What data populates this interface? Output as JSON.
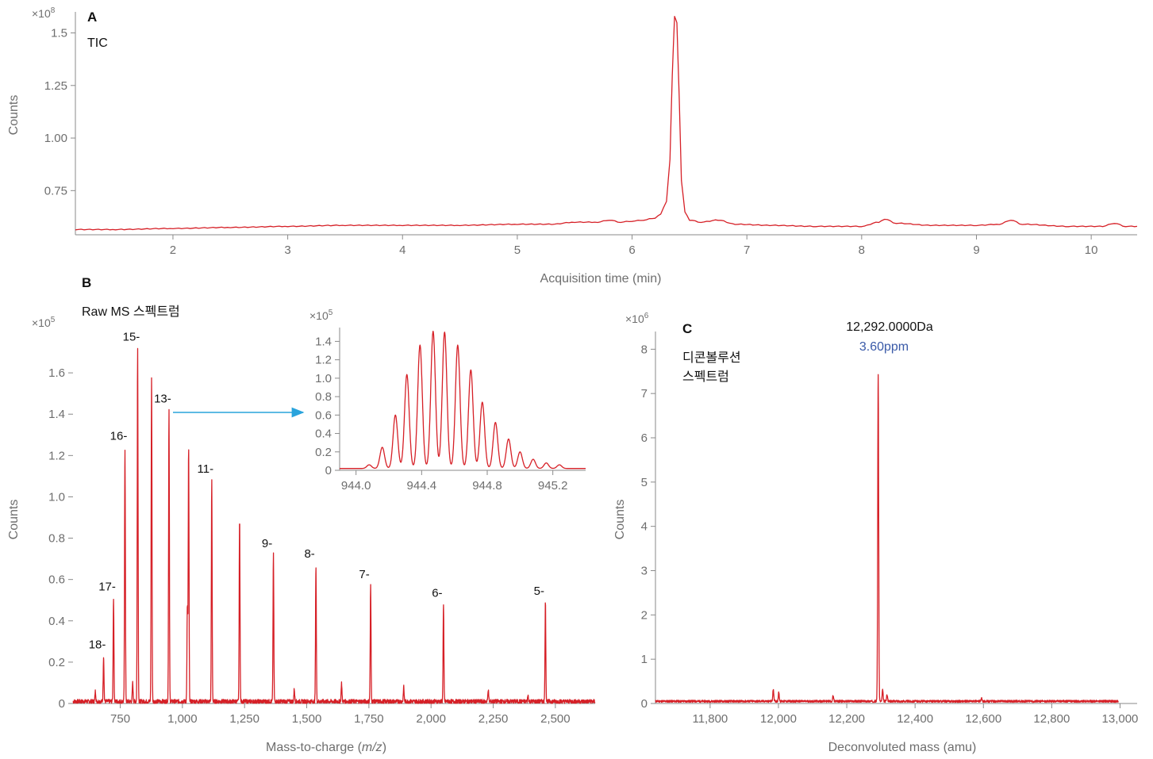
{
  "colors": {
    "trace": "#d62027",
    "arrow": "#29a3dc",
    "ppm_text": "#3a5aa8",
    "axis": "#8a8a8a",
    "text": "#6e6e6e"
  },
  "panels": {
    "a": {
      "letter": "A",
      "label": "TIC",
      "multiplier_base": "×10",
      "multiplier_exp": "8"
    },
    "b": {
      "letter": "B",
      "label": "Raw MS 스펙트럼",
      "multiplier_base": "×10",
      "multiplier_exp": "5",
      "inset_multiplier_base": "×10",
      "inset_multiplier_exp": "5"
    },
    "c": {
      "letter": "C",
      "label_line1": "디콘볼루션",
      "label_line2": "스펙트럼",
      "multiplier_base": "×10",
      "multiplier_exp": "6",
      "peak_mass": "12,292.0000Da",
      "peak_ppm": "3.60ppm"
    }
  },
  "chart_data": [
    {
      "id": "tic",
      "type": "line",
      "title": "TIC",
      "xlabel": "Acquisition time (min)",
      "ylabel": "Counts",
      "xlim": [
        1.15,
        10.4
      ],
      "ylim": [
        0.54,
        1.6
      ],
      "y_multiplier": "×10^8",
      "xticks": [
        2,
        3,
        4,
        5,
        6,
        7,
        8,
        9,
        10
      ],
      "xtick_labels": [
        "2",
        "3",
        "4",
        "5",
        "6",
        "7",
        "8",
        "9",
        "10"
      ],
      "yticks": [
        0.75,
        1.0,
        1.25,
        1.5
      ],
      "ytick_labels": [
        "0.75",
        "1.00",
        "1.25",
        "1.5"
      ],
      "x": [
        1.15,
        1.5,
        2.0,
        2.5,
        3.0,
        3.5,
        4.0,
        4.5,
        5.0,
        5.3,
        5.5,
        5.7,
        5.8,
        5.9,
        6.0,
        6.1,
        6.2,
        6.25,
        6.3,
        6.33,
        6.35,
        6.37,
        6.39,
        6.41,
        6.43,
        6.46,
        6.5,
        6.6,
        6.75,
        6.9,
        7.2,
        7.6,
        8.0,
        8.15,
        8.2,
        8.3,
        8.6,
        9.0,
        9.2,
        9.3,
        9.4,
        9.8,
        10.1,
        10.2,
        10.3,
        10.4
      ],
      "y": [
        0.565,
        0.565,
        0.57,
        0.575,
        0.58,
        0.585,
        0.585,
        0.585,
        0.59,
        0.59,
        0.6,
        0.6,
        0.61,
        0.6,
        0.605,
        0.61,
        0.62,
        0.64,
        0.7,
        0.9,
        1.3,
        1.58,
        1.55,
        1.2,
        0.8,
        0.65,
        0.61,
        0.6,
        0.61,
        0.59,
        0.585,
        0.58,
        0.58,
        0.6,
        0.615,
        0.595,
        0.585,
        0.585,
        0.59,
        0.61,
        0.59,
        0.58,
        0.58,
        0.595,
        0.58,
        0.58
      ]
    },
    {
      "id": "raw_ms",
      "type": "line",
      "title": "Raw MS 스펙트럼",
      "xlabel": "Mass-to-charge (m/z)",
      "ylabel": "Counts",
      "xlim": [
        560,
        2660
      ],
      "ylim": [
        0,
        1.8
      ],
      "y_multiplier": "×10^5",
      "xticks": [
        750,
        1000,
        1250,
        1500,
        1750,
        2000,
        2250,
        2500
      ],
      "xtick_labels": [
        "750",
        "1,000",
        "1,250",
        "1,500",
        "1,750",
        "2,000",
        "2,250",
        "2,500"
      ],
      "yticks": [
        0,
        0.2,
        0.4,
        0.6,
        0.8,
        1.0,
        1.2,
        1.4,
        1.6
      ],
      "ytick_labels": [
        "0",
        "0.2",
        "0.4",
        "0.6",
        "0.8",
        "1.0",
        "1.2",
        "1.4",
        "1.6"
      ],
      "baseline": 0.01,
      "peaks": [
        {
          "mz": 683,
          "h": 0.22,
          "label": "18-"
        },
        {
          "mz": 723,
          "h": 0.5,
          "label": "17-"
        },
        {
          "mz": 769,
          "h": 1.23,
          "label": "16-"
        },
        {
          "mz": 820,
          "h": 1.71,
          "label": "15-"
        },
        {
          "mz": 876,
          "h": 1.57,
          "label": ""
        },
        {
          "mz": 946,
          "h": 1.41,
          "label": "13-"
        },
        {
          "mz": 1025,
          "h": 1.23,
          "label": ""
        },
        {
          "mz": 1118,
          "h": 1.07,
          "label": "11-"
        },
        {
          "mz": 1230,
          "h": 0.88,
          "label": ""
        },
        {
          "mz": 1366,
          "h": 0.71,
          "label": "9-"
        },
        {
          "mz": 1537,
          "h": 0.66,
          "label": "8-"
        },
        {
          "mz": 1757,
          "h": 0.56,
          "label": "7-"
        },
        {
          "mz": 2050,
          "h": 0.47,
          "label": "6-"
        },
        {
          "mz": 2460,
          "h": 0.48,
          "label": "5-"
        },
        {
          "mz": 1020,
          "h": 0.46,
          "label": ""
        },
        {
          "mz": 650,
          "h": 0.05,
          "label": ""
        },
        {
          "mz": 800,
          "h": 0.09,
          "label": ""
        },
        {
          "mz": 1640,
          "h": 0.09,
          "label": ""
        },
        {
          "mz": 1890,
          "h": 0.07,
          "label": ""
        },
        {
          "mz": 2230,
          "h": 0.06,
          "label": ""
        },
        {
          "mz": 1450,
          "h": 0.06,
          "label": ""
        },
        {
          "mz": 2390,
          "h": 0.03,
          "label": ""
        }
      ]
    },
    {
      "id": "isotope_inset",
      "type": "line",
      "xlim": [
        943.9,
        945.4
      ],
      "ylim": [
        0,
        1.55
      ],
      "y_multiplier": "×10^5",
      "xticks": [
        944.0,
        944.4,
        944.8,
        945.2
      ],
      "xtick_labels": [
        "944.0",
        "944.4",
        "944.8",
        "945.2"
      ],
      "yticks": [
        0,
        0.2,
        0.4,
        0.6,
        0.8,
        1.0,
        1.2,
        1.4
      ],
      "ytick_labels": [
        "0",
        "0.2",
        "0.4",
        "0.6",
        "0.8",
        "1.0",
        "1.2",
        "1.4"
      ],
      "peaks": [
        {
          "mz": 944.08,
          "h": 0.04
        },
        {
          "mz": 944.16,
          "h": 0.23
        },
        {
          "mz": 944.24,
          "h": 0.58
        },
        {
          "mz": 944.31,
          "h": 1.02
        },
        {
          "mz": 944.39,
          "h": 1.34
        },
        {
          "mz": 944.47,
          "h": 1.49
        },
        {
          "mz": 944.54,
          "h": 1.48
        },
        {
          "mz": 944.62,
          "h": 1.34
        },
        {
          "mz": 944.7,
          "h": 1.07
        },
        {
          "mz": 944.77,
          "h": 0.72
        },
        {
          "mz": 944.85,
          "h": 0.5
        },
        {
          "mz": 944.93,
          "h": 0.32
        },
        {
          "mz": 945.0,
          "h": 0.18
        },
        {
          "mz": 945.08,
          "h": 0.1
        },
        {
          "mz": 945.16,
          "h": 0.06
        },
        {
          "mz": 945.24,
          "h": 0.04
        }
      ]
    },
    {
      "id": "deconvoluted",
      "type": "line",
      "title": "디콘볼루션 스펙트럼",
      "xlabel": "Deconvoluted mass (amu)",
      "ylabel": "Counts",
      "xlim": [
        11640,
        13050
      ],
      "ylim": [
        0,
        8.4
      ],
      "y_multiplier": "×10^6",
      "xticks": [
        11800,
        12000,
        12200,
        12400,
        12600,
        12800,
        13000
      ],
      "xtick_labels": [
        "11,800",
        "12,000",
        "12,200",
        "12,400",
        "12,600",
        "12,800",
        "13,000"
      ],
      "yticks": [
        0,
        1,
        2,
        3,
        4,
        5,
        6,
        7,
        8
      ],
      "ytick_labels": [
        "0",
        "1",
        "2",
        "3",
        "4",
        "5",
        "6",
        "7",
        "8"
      ],
      "baseline": 0.05,
      "peaks": [
        {
          "mass": 12292,
          "h": 7.4,
          "label": "12,292.0000Da"
        },
        {
          "mass": 12305,
          "h": 0.25,
          "label": ""
        },
        {
          "mass": 12318,
          "h": 0.15,
          "label": ""
        },
        {
          "mass": 11985,
          "h": 0.28,
          "label": ""
        },
        {
          "mass": 12001,
          "h": 0.2,
          "label": ""
        },
        {
          "mass": 12160,
          "h": 0.12,
          "label": ""
        },
        {
          "mass": 12595,
          "h": 0.08,
          "label": ""
        }
      ]
    }
  ]
}
